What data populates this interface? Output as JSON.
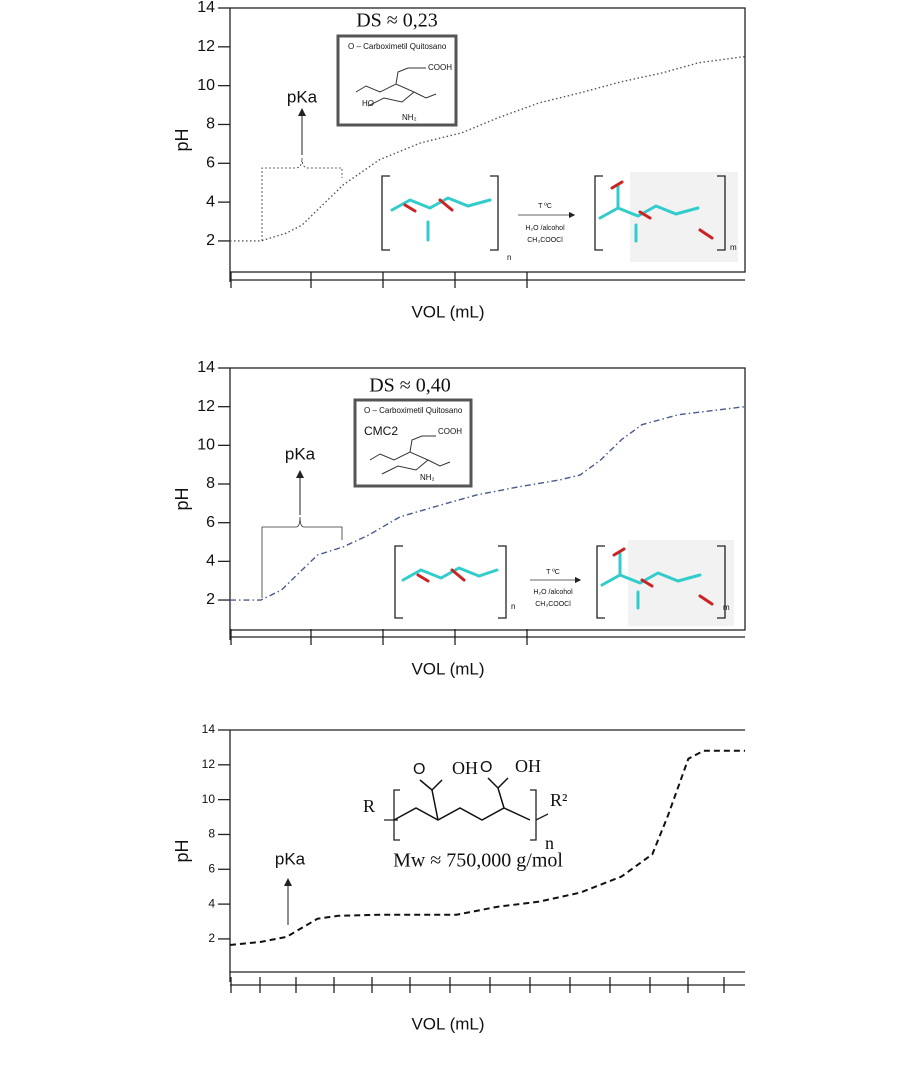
{
  "chart_data": [
    {
      "type": "line",
      "y_label": "pH",
      "x_label": "VOL (mL)",
      "ds_label": "DS ≈ 0,23",
      "pka_label": "pKa",
      "inset": {
        "title": "O – Carboximetil Quitosano",
        "group": "COOH",
        "hydroxyl": "HO",
        "amine": "NH₂"
      },
      "reaction": {
        "temperature": "T ºC",
        "solvent": "H₂O /alcohol",
        "reagent": "CH₃COOCl",
        "left_index": "n",
        "right_index": "m"
      },
      "line_style": "dotted",
      "color": "#555555",
      "x": [
        0,
        6,
        11,
        14,
        18,
        22,
        29,
        37,
        45,
        52,
        60,
        68,
        76,
        84,
        91,
        100
      ],
      "values": [
        2.0,
        2.0,
        2.41,
        2.82,
        3.86,
        4.89,
        6.18,
        7.05,
        7.57,
        8.34,
        9.11,
        9.63,
        10.2,
        10.66,
        11.18,
        11.5
      ],
      "xlim": [
        0,
        100
      ],
      "ylim": [
        0.4,
        14
      ],
      "yticks": [
        2,
        4,
        6,
        8,
        10,
        12,
        14
      ]
    },
    {
      "type": "line",
      "y_label": "pH",
      "x_label": "VOL (mL)",
      "ds_label": "DS ≈ 0,40",
      "pka_label": "pKa",
      "inset": {
        "title": "O – Carboximetil Quitosano",
        "sample": "CMC2",
        "group": "COOH",
        "amine": "NH₂"
      },
      "reaction": {
        "temperature": "T ºC",
        "solvent": "H₂O /alcohol",
        "reagent": "CH₃COOCl",
        "left_index": "n",
        "right_index": "m"
      },
      "line_style": "dashdot",
      "color": "#4a5a8c",
      "x": [
        0,
        6,
        10,
        14,
        17,
        22,
        27,
        33,
        41,
        48,
        56,
        64,
        68,
        72,
        76,
        80,
        87,
        100
      ],
      "values": [
        2.0,
        2.0,
        2.52,
        3.56,
        4.33,
        4.75,
        5.37,
        6.3,
        6.92,
        7.44,
        7.85,
        8.21,
        8.47,
        9.25,
        10.29,
        11.07,
        11.58,
        12.0
      ],
      "xlim": [
        0,
        100
      ],
      "ylim": [
        0.45,
        14
      ],
      "yticks": [
        2,
        4,
        6,
        8,
        10,
        12,
        14
      ]
    },
    {
      "type": "line",
      "y_label": "pH",
      "x_label": "VOL (mL)",
      "pka_label": "pKa",
      "structure": {
        "acid_left": "OH",
        "acid_right": "OH",
        "end_left": "R",
        "end_right": "R²",
        "index": "n"
      },
      "mw_label": "Mw ≈ 750,000 g/mol",
      "line_style": "dashed",
      "color": "#111111",
      "x": [
        0,
        6,
        11,
        14,
        17,
        21,
        29,
        44,
        52,
        60,
        68,
        76,
        82,
        85,
        89,
        92,
        100
      ],
      "values": [
        1.65,
        1.83,
        2.12,
        2.64,
        3.16,
        3.33,
        3.39,
        3.39,
        3.85,
        4.14,
        4.66,
        5.58,
        6.86,
        9.05,
        12.35,
        12.81,
        12.81
      ],
      "xlim": [
        0,
        100
      ],
      "ylim": [
        0.1,
        14
      ],
      "yticks": [
        2,
        4,
        6,
        8,
        10,
        12,
        14
      ]
    }
  ]
}
